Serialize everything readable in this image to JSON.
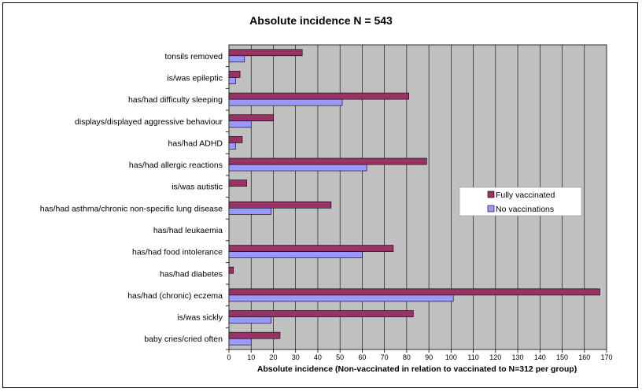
{
  "chart_data": {
    "type": "bar",
    "orientation": "horizontal",
    "title": "Absolute incidence N = 543",
    "xlabel": "Absolute incidence (Non-vaccinated in relation to vaccinated to N=312 per group)",
    "ylabel": "",
    "xlim": [
      0,
      170
    ],
    "xticks": [
      0,
      10,
      20,
      30,
      40,
      50,
      60,
      70,
      80,
      90,
      100,
      110,
      120,
      130,
      140,
      150,
      160,
      170
    ],
    "grid": true,
    "legend_position": "right",
    "categories": [
      "tonsils removed",
      "is/was epileptic",
      "has/had difficulty sleeping",
      "displays/displayed aggressive behaviour",
      "has/had ADHD",
      "has/had allergic reactions",
      "is/was autistic",
      "has/had asthma/chronic non-specific lung disease",
      "has/had leukaemia",
      "has/had food intolerance",
      "has/had diabetes",
      "has/had (chronic) eczema",
      "is/was sickly",
      "baby cries/cried often"
    ],
    "series": [
      {
        "name": "Fully vaccinated",
        "color": "#993366",
        "values": [
          33,
          5,
          81,
          20,
          6,
          89,
          8,
          46,
          0,
          74,
          2,
          167,
          83,
          23
        ]
      },
      {
        "name": "No vaccinations",
        "color": "#9999ff",
        "values": [
          7,
          3,
          51,
          10,
          3,
          62,
          0,
          19,
          0,
          60,
          0,
          101,
          19,
          10
        ]
      }
    ],
    "colors": {
      "plot_background": "#c0c0c0",
      "gridline": "#000000"
    }
  }
}
